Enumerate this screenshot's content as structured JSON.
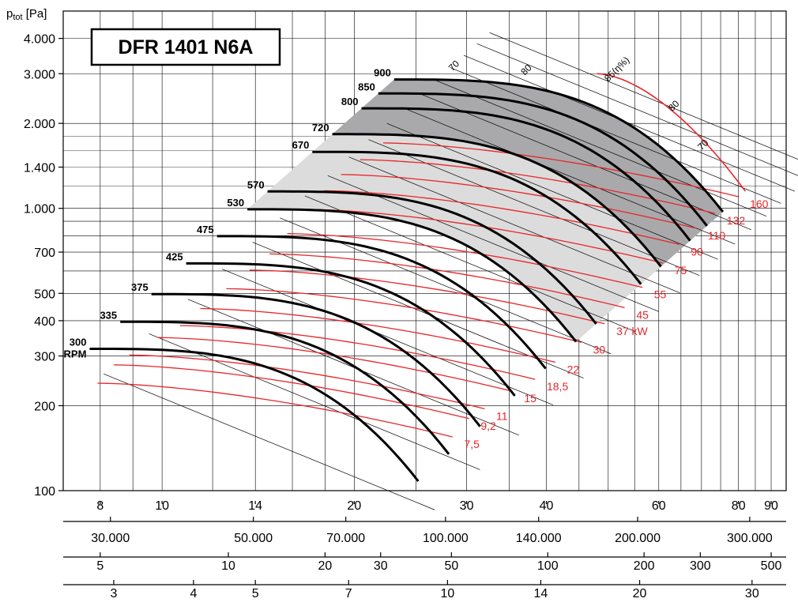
{
  "chart_data": {
    "type": "line",
    "title": "DFR 1401 N6A",
    "ylabel_prefix": "p",
    "ylabel_sub": "tot",
    "ylabel_unit": " [Pa]",
    "y_scale": "log",
    "ylim": [
      100,
      5000
    ],
    "yticks": [
      {
        "value": 4000,
        "label": "4.000"
      },
      {
        "value": 3000,
        "label": "3.000"
      },
      {
        "value": 2000,
        "label": "2.000"
      },
      {
        "value": 1400,
        "label": "1.400"
      },
      {
        "value": 1000,
        "label": "1.000"
      },
      {
        "value": 700,
        "label": "700"
      },
      {
        "value": 500,
        "label": "500"
      },
      {
        "value": 400,
        "label": "400"
      },
      {
        "value": 300,
        "label": "300"
      },
      {
        "value": 200,
        "label": "200"
      },
      {
        "value": 100,
        "label": "100"
      }
    ],
    "x_scale": "log",
    "xlim": [
      7,
      95
    ],
    "x_axes": [
      {
        "labels": [
          {
            "v": 8,
            "t": "8"
          },
          {
            "v": 10,
            "t": "10"
          },
          {
            "v": 14,
            "t": "14"
          },
          {
            "v": 20,
            "t": "20"
          },
          {
            "v": 30,
            "t": "30"
          },
          {
            "v": 40,
            "t": "40"
          },
          {
            "v": 60,
            "t": "60"
          },
          {
            "v": 80,
            "t": "80"
          },
          {
            "v": 90,
            "t": "90"
          }
        ]
      },
      {
        "labels": [
          {
            "v": 8.3,
            "t": "30.000"
          },
          {
            "v": 13.9,
            "t": "50.000"
          },
          {
            "v": 19.4,
            "t": "70.000"
          },
          {
            "v": 27.8,
            "t": "100.000"
          },
          {
            "v": 38.9,
            "t": "140.000"
          },
          {
            "v": 55.6,
            "t": "200.000"
          },
          {
            "v": 83.3,
            "t": "300.000"
          }
        ]
      },
      {
        "labels": [
          {
            "v": 8.0,
            "t": "5"
          },
          {
            "v": 12.7,
            "t": "10"
          },
          {
            "v": 18.0,
            "t": "20"
          },
          {
            "v": 22.0,
            "t": "30"
          },
          {
            "v": 28.4,
            "t": "50"
          },
          {
            "v": 40.2,
            "t": "100"
          },
          {
            "v": 56.9,
            "t": "200"
          },
          {
            "v": 69.7,
            "t": "300"
          },
          {
            "v": 90.0,
            "t": "500"
          }
        ]
      },
      {
        "labels": [
          {
            "v": 8.4,
            "t": "3"
          },
          {
            "v": 11.2,
            "t": "4"
          },
          {
            "v": 14.0,
            "t": "5"
          },
          {
            "v": 19.6,
            "t": "7"
          },
          {
            "v": 28.0,
            "t": "10"
          },
          {
            "v": 39.2,
            "t": "14"
          },
          {
            "v": 56.0,
            "t": "20"
          },
          {
            "v": 84.0,
            "t": "30"
          }
        ]
      }
    ],
    "rpm_curves": [
      {
        "label": "300",
        "sublabel": "RPM",
        "rpm": 300
      },
      {
        "label": "335",
        "rpm": 335
      },
      {
        "label": "375",
        "rpm": 375
      },
      {
        "label": "425",
        "rpm": 425
      },
      {
        "label": "475",
        "rpm": 475
      },
      {
        "label": "530",
        "rpm": 530
      },
      {
        "label": "570",
        "rpm": 570
      },
      {
        "label": "670",
        "rpm": 670
      },
      {
        "label": "720",
        "rpm": 720
      },
      {
        "label": "800",
        "rpm": 800
      },
      {
        "label": "850",
        "rpm": 850
      },
      {
        "label": "900",
        "rpm": 900
      }
    ],
    "power_labels": [
      {
        "t": "7,5",
        "x": 29.4,
        "y": 155
      },
      {
        "t": "9,2",
        "x": 31.2,
        "y": 180
      },
      {
        "t": "11",
        "x": 33.0,
        "y": 195
      },
      {
        "t": "15",
        "x": 36.5,
        "y": 225
      },
      {
        "t": "18,5",
        "x": 39.6,
        "y": 248
      },
      {
        "t": "22",
        "x": 42.6,
        "y": 285
      },
      {
        "t": "30",
        "x": 46.8,
        "y": 335
      },
      {
        "t": "37 kW",
        "x": 50.9,
        "y": 390
      },
      {
        "t": "45",
        "x": 54.7,
        "y": 445
      },
      {
        "t": "55",
        "x": 58.3,
        "y": 525
      },
      {
        "t": "75",
        "x": 62.8,
        "y": 640
      },
      {
        "t": "90",
        "x": 66.6,
        "y": 745
      },
      {
        "t": "110",
        "x": 70.8,
        "y": 850
      },
      {
        "t": "132",
        "x": 75.8,
        "y": 960
      },
      {
        "t": "160",
        "x": 82.4,
        "y": 1100
      }
    ],
    "efficiency_labels": [
      {
        "t": "70",
        "x": 28.5,
        "y": 3050
      },
      {
        "t": "80",
        "x": 37.0,
        "y": 2950
      },
      {
        "t": "85(η%)",
        "x": 50.0,
        "y": 2800
      },
      {
        "t": "80",
        "x": 63.0,
        "y": 2200
      },
      {
        "t": "70",
        "x": 70.0,
        "y": 1600
      }
    ],
    "grid": true
  }
}
